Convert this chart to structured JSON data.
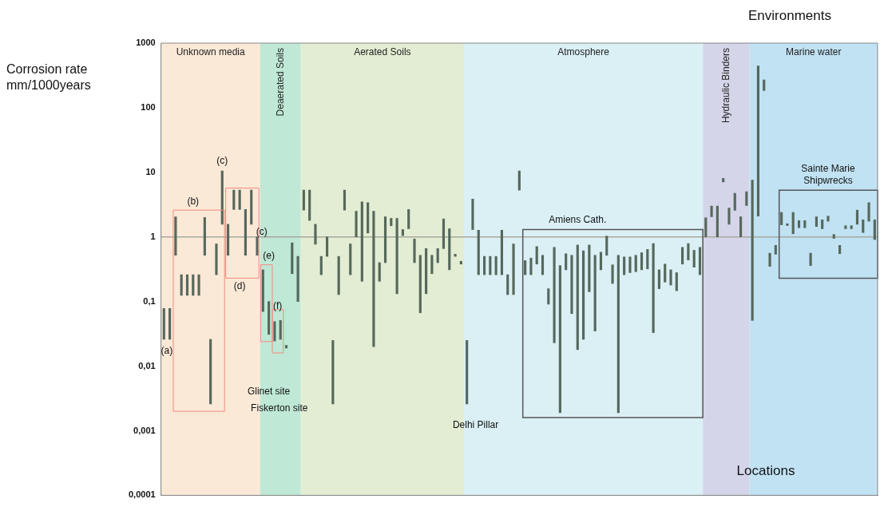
{
  "chart_data": {
    "type": "bar",
    "ylabel": "Corrosion rate mm/1000years",
    "log": true,
    "ylim": [
      0.0001,
      1000
    ],
    "yticks": [
      {
        "value": 0.0001,
        "label": "0,0001"
      },
      {
        "value": 0.001,
        "label": "0,001"
      },
      {
        "value": 0.01,
        "label": "0,01"
      },
      {
        "value": 0.1,
        "label": "0,1"
      },
      {
        "value": 1,
        "label": "1"
      },
      {
        "value": 10,
        "label": "10"
      },
      {
        "value": 100,
        "label": "100"
      },
      {
        "value": 1000,
        "label": "1000"
      }
    ],
    "tick_labels": "y",
    "color": "#56685c",
    "categories": [
      null,
      null,
      null,
      null,
      null,
      null,
      null,
      null,
      null,
      null,
      null,
      null,
      null,
      null,
      null,
      null,
      null,
      null,
      null,
      null,
      null,
      null,
      null,
      null,
      null,
      null,
      null,
      null,
      null,
      null,
      null,
      null,
      null,
      null,
      null,
      null,
      null,
      null,
      null,
      null,
      null,
      null,
      null,
      null,
      null,
      null,
      null,
      null,
      null,
      null,
      null,
      null,
      null,
      null,
      null,
      null,
      null,
      null,
      null,
      null,
      null,
      null,
      null,
      null,
      null,
      null,
      null,
      null,
      null,
      null,
      null,
      null,
      null,
      null,
      null,
      null,
      null,
      null,
      null,
      null,
      null,
      null,
      null,
      null,
      null,
      null,
      null,
      null,
      null,
      null,
      null,
      null,
      null,
      null,
      null,
      null,
      null,
      null,
      null,
      null,
      null,
      null,
      null,
      null,
      null,
      null,
      null,
      null,
      null,
      null,
      null,
      null,
      null,
      null,
      null,
      null,
      null,
      null,
      null,
      null,
      null,
      null,
      null
    ],
    "base": [
      0.026,
      0.026,
      0.52,
      0.125,
      0.125,
      0.125,
      0.125,
      0.52,
      0.0026,
      0.26,
      1.57,
      0.52,
      2.66,
      2.66,
      0.52,
      1.57,
      0.52,
      0.07,
      0.031,
      0.0245,
      0.026,
      0.019,
      0.27,
      0.1,
      2.6,
      1.8,
      0.77,
      0.26,
      0.5,
      0.0026,
      0.128,
      2.6,
      0.26,
      1,
      0.206,
      1.15,
      0.02,
      0.206,
      0.4,
      1.49,
      0.132,
      1.05,
      1.34,
      0.4,
      0.067,
      0.132,
      0.27,
      0.4,
      0.66,
      0.31,
      0.5,
      0.38,
      0.0026,
      1.3,
      0.26,
      0.26,
      0.26,
      0.26,
      0.26,
      0.128,
      0.128,
      5.3,
      0.26,
      0.26,
      0.38,
      0.26,
      0.091,
      0.023,
      0.0019,
      0.31,
      0.065,
      0.018,
      0.026,
      0.142,
      0.035,
      0.31,
      0.52,
      0.19,
      0.0019,
      0.26,
      0.28,
      0.29,
      0.31,
      0.32,
      0.033,
      0.158,
      0.2,
      0.18,
      0.147,
      0.38,
      0.44,
      0.34,
      0.26,
      1,
      2.05,
      1,
      7.1,
      1.57,
      2.58,
      1,
      3.06,
      0.051,
      2.1,
      184,
      0.35,
      0.54,
      1.54,
      1.5,
      1.12,
      1.39,
      1.39,
      0.36,
      1.45,
      1.34,
      1.75,
      0.95,
      0.55,
      1.34,
      1.34,
      1.57,
      1.17,
      1.75,
      0.91
    ],
    "values": [
      0.052,
      0.052,
      1.53,
      0.135,
      0.135,
      0.135,
      0.135,
      1.48,
      0.0234,
      0.52,
      8.93,
      1.05,
      2.64,
      2.64,
      2.14,
      3.73,
      0.48,
      0.24,
      0.069,
      0.0245,
      0.025,
      0.002,
      0.54,
      0.4,
      2.7,
      3.5,
      0.8,
      0.24,
      0.5,
      0.0224,
      0.372,
      2.7,
      0.52,
      1.5,
      3.294,
      2.25,
      2.48,
      0.194,
      1.65,
      0.45,
      1.808,
      0.25,
      1.32,
      0.53,
      0.453,
      0.528,
      0.25,
      0.26,
      1.24,
      1.03,
      0.04,
      0.04,
      0.0224,
      2.55,
      1.01,
      0.24,
      0.24,
      0.24,
      1.01,
      0.132,
      0.652,
      5.2,
      0.17,
      0.21,
      0.33,
      0.26,
      0.067,
      0.667,
      0.3581,
      0.24,
      0.455,
      0.732,
      0.584,
      0.608,
      0.485,
      0.27,
      0.51,
      0.18,
      0.5181,
      0.23,
      0.21,
      0.23,
      0.26,
      0.32,
      0.757,
      0.152,
      0.18,
      0.13,
      0.133,
      0.31,
      0.35,
      0.28,
      0.43,
      0.98,
      0.95,
      2,
      0.95,
      1.23,
      2.17,
      1.05,
      1.94,
      7.549,
      439.9,
      85,
      0.21,
      0.2,
      0.86,
      0.1,
      1.28,
      0.4,
      0.4,
      0.2,
      0.6,
      0.5,
      0.35,
      0.14,
      0.19,
      0.15,
      0.15,
      1.03,
      0.67,
      1.65,
      0.93
    ],
    "ref_lines": [
      {
        "axis": "y",
        "value": 1,
        "color": "#a8a8a0"
      }
    ],
    "annotations": [
      "Environments",
      "Locations",
      "Unknown media",
      "Deaerated Soils",
      "Aerated Soils",
      "Atmosphere",
      "Hydraulic Binders",
      "Marine water",
      "(a)",
      "(b)",
      "(c)",
      "(d)",
      "(c)",
      "(e)",
      "(f)",
      "Glinet site",
      "Fiskerton site",
      "Delhi Pillar",
      "Amiens Cath.",
      "Sainte Marie Shipwrecks"
    ]
  }
}
